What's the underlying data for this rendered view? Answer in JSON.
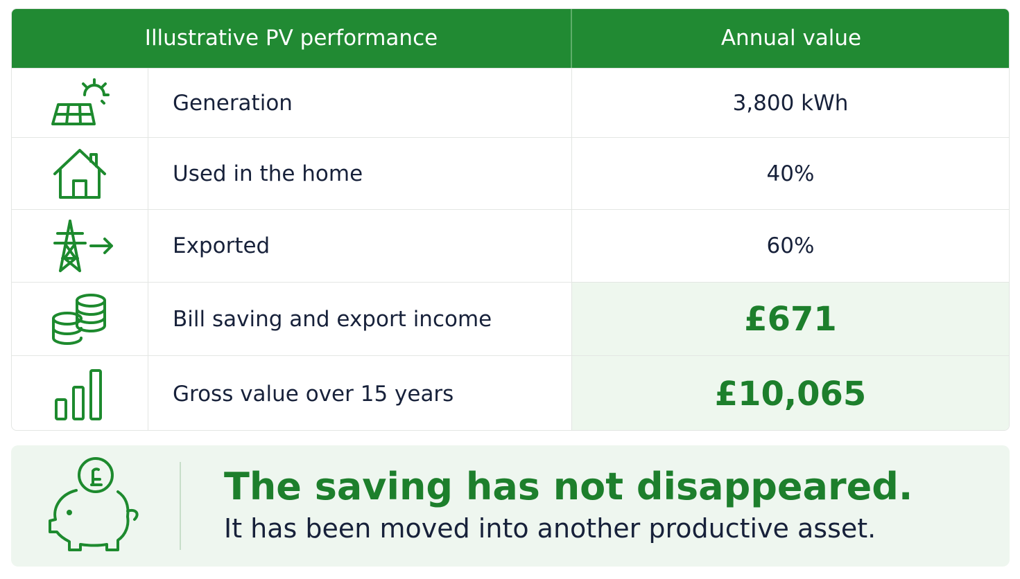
{
  "table": {
    "header": [
      "Illustrative PV performance",
      "Annual value"
    ],
    "rows": [
      [
        "Generation",
        "3,800 kWh"
      ],
      [
        "Used in the home",
        "40%"
      ],
      [
        "Exported",
        "60%"
      ],
      [
        "Bill saving and export income",
        "£671"
      ],
      [
        "Gross value over 15 years",
        "£10,065"
      ]
    ]
  },
  "callout": {
    "title": "The saving has not disappeared.",
    "text": "It has been moved into another productive asset."
  }
}
